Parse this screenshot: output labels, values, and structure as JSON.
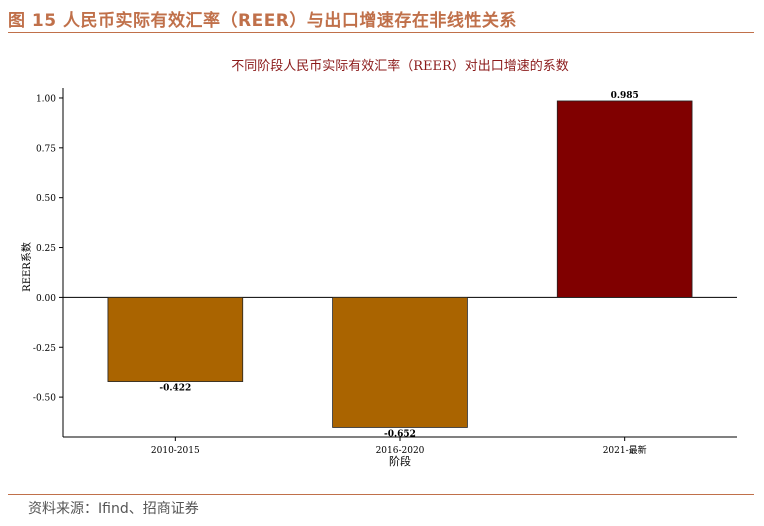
{
  "figure": {
    "title": "图 15 人民币实际有效汇率（REER）与出口增速存在非线性关系",
    "source": "资料来源：Ifind、招商证券"
  },
  "colors": {
    "accent": "#c0704a",
    "bar_negative": "#aa6400",
    "bar_positive": "#800000"
  },
  "chart_data": {
    "type": "bar",
    "title": "不同阶段人民币实际有效汇率（REER）对出口增速的系数",
    "xlabel": "阶段",
    "ylabel": "REER系数",
    "categories": [
      "2010-2015",
      "2016-2020",
      "2021-最新"
    ],
    "values": [
      -0.422,
      -0.652,
      0.985
    ],
    "value_labels": [
      "-0.422",
      "-0.652",
      "0.985"
    ],
    "ylim": [
      -0.7,
      1.05
    ],
    "yticks": [
      1.0,
      0.75,
      0.5,
      0.25,
      0.0,
      -0.25,
      -0.5
    ],
    "ytick_labels": [
      "1.00",
      "0.75",
      "0.50",
      "0.25",
      "0.00",
      "-0.25",
      "-0.50"
    ],
    "zero_line": true,
    "grid": false,
    "legend": "none"
  }
}
